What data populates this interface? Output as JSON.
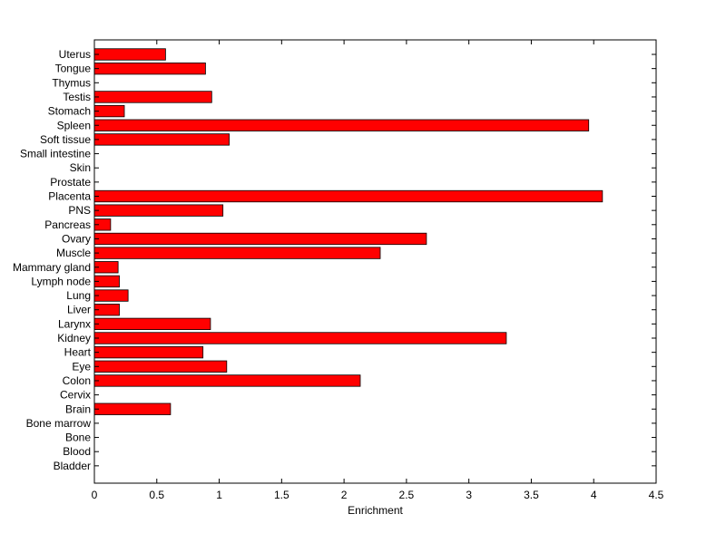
{
  "chart_data": {
    "type": "bar",
    "orientation": "horizontal",
    "title": "",
    "xlabel": "Enrichment",
    "ylabel": "",
    "xlim": [
      0,
      4.5
    ],
    "xticks": [
      0,
      0.5,
      1,
      1.5,
      2,
      2.5,
      3,
      3.5,
      4,
      4.5
    ],
    "xtick_labels": [
      "0",
      "0.5",
      "1",
      "1.5",
      "2",
      "2.5",
      "3",
      "3.5",
      "4",
      "4.5"
    ],
    "grid": false,
    "legend": "none",
    "bar_color": "#ff0000",
    "categories": [
      "Uterus",
      "Tongue",
      "Thymus",
      "Testis",
      "Stomach",
      "Spleen",
      "Soft tissue",
      "Small intestine",
      "Skin",
      "Prostate",
      "Placenta",
      "PNS",
      "Pancreas",
      "Ovary",
      "Muscle",
      "Mammary gland",
      "Lymph node",
      "Lung",
      "Liver",
      "Larynx",
      "Kidney",
      "Heart",
      "Eye",
      "Colon",
      "Cervix",
      "Brain",
      "Bone marrow",
      "Bone",
      "Blood",
      "Bladder"
    ],
    "values": [
      0.57,
      0.89,
      0,
      0.94,
      0.24,
      3.96,
      1.08,
      0,
      0,
      0,
      4.07,
      1.03,
      0.13,
      2.66,
      2.29,
      0.19,
      0.2,
      0.27,
      0.2,
      0.93,
      3.3,
      0.87,
      1.06,
      2.13,
      0,
      0.61,
      0,
      0,
      0,
      0
    ]
  }
}
